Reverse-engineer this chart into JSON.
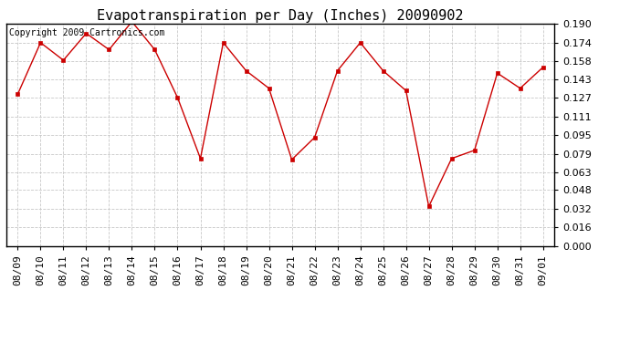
{
  "title": "Evapotranspiration per Day (Inches) 20090902",
  "copyright": "Copyright 2009 Cartronics.com",
  "dates": [
    "08/09",
    "08/10",
    "08/11",
    "08/12",
    "08/13",
    "08/14",
    "08/15",
    "08/16",
    "08/17",
    "08/18",
    "08/19",
    "08/20",
    "08/21",
    "08/22",
    "08/23",
    "08/24",
    "08/25",
    "08/26",
    "08/27",
    "08/28",
    "08/29",
    "08/30",
    "08/31",
    "09/01"
  ],
  "values": [
    0.13,
    0.174,
    0.159,
    0.182,
    0.168,
    0.192,
    0.168,
    0.127,
    0.075,
    0.174,
    0.15,
    0.135,
    0.074,
    0.093,
    0.15,
    0.174,
    0.15,
    0.133,
    0.034,
    0.075,
    0.082,
    0.148,
    0.135,
    0.153
  ],
  "line_color": "#cc0000",
  "marker": "s",
  "marker_size": 3,
  "bg_color": "#ffffff",
  "plot_bg_color": "#ffffff",
  "grid_color": "#c8c8c8",
  "title_fontsize": 11,
  "tick_fontsize": 8,
  "copyright_fontsize": 7,
  "ylim": [
    0.0,
    0.19
  ],
  "yticks": [
    0.0,
    0.016,
    0.032,
    0.048,
    0.063,
    0.079,
    0.095,
    0.111,
    0.127,
    0.143,
    0.158,
    0.174,
    0.19
  ]
}
